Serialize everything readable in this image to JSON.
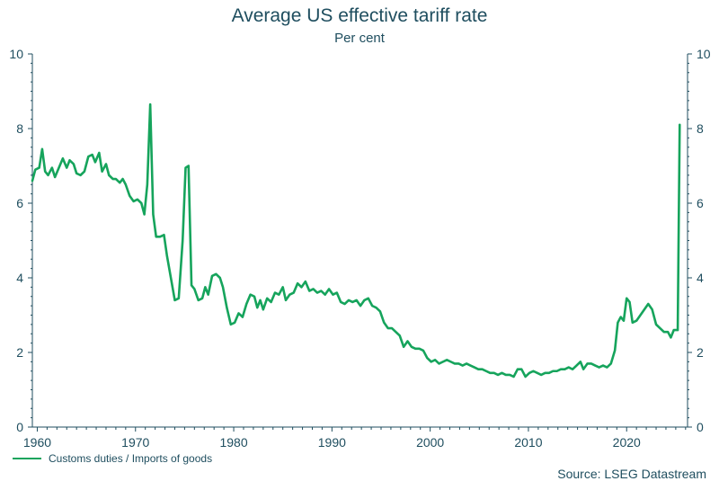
{
  "chart_data": {
    "type": "line",
    "title": "Average US effective tariff rate",
    "subtitle": "Per cent",
    "xlabel": "",
    "ylabel": "",
    "xlim": [
      1959.5,
      2026.2
    ],
    "ylim": [
      0,
      10
    ],
    "x_ticks": [
      {
        "value": 1960,
        "label": "1960"
      },
      {
        "value": 1970,
        "label": "1970"
      },
      {
        "value": 1980,
        "label": "1980"
      },
      {
        "value": 1990,
        "label": "1990"
      },
      {
        "value": 2000,
        "label": "2000"
      },
      {
        "value": 2010,
        "label": "2010"
      },
      {
        "value": 2020,
        "label": "2020"
      }
    ],
    "y_ticks": [
      {
        "value": 0,
        "label": "0"
      },
      {
        "value": 2,
        "label": "2"
      },
      {
        "value": 4,
        "label": "4"
      },
      {
        "value": 6,
        "label": "6"
      },
      {
        "value": 8,
        "label": "8"
      },
      {
        "value": 10,
        "label": "10"
      }
    ],
    "series": [
      {
        "name": "Customs duties / Imports of goods",
        "color": "#16a45c",
        "points": [
          [
            1959.5,
            6.6
          ],
          [
            1959.8,
            6.9
          ],
          [
            1960.2,
            6.95
          ],
          [
            1960.5,
            7.45
          ],
          [
            1960.8,
            6.85
          ],
          [
            1961.1,
            6.75
          ],
          [
            1961.5,
            6.95
          ],
          [
            1961.8,
            6.7
          ],
          [
            1962.2,
            6.95
          ],
          [
            1962.6,
            7.2
          ],
          [
            1963.0,
            6.95
          ],
          [
            1963.3,
            7.15
          ],
          [
            1963.7,
            7.05
          ],
          [
            1964.0,
            6.8
          ],
          [
            1964.4,
            6.75
          ],
          [
            1964.8,
            6.85
          ],
          [
            1965.2,
            7.25
          ],
          [
            1965.6,
            7.3
          ],
          [
            1965.9,
            7.1
          ],
          [
            1966.3,
            7.35
          ],
          [
            1966.6,
            6.85
          ],
          [
            1967.0,
            7.05
          ],
          [
            1967.3,
            6.75
          ],
          [
            1967.7,
            6.65
          ],
          [
            1968.0,
            6.65
          ],
          [
            1968.4,
            6.55
          ],
          [
            1968.7,
            6.65
          ],
          [
            1969.0,
            6.5
          ],
          [
            1969.4,
            6.2
          ],
          [
            1969.8,
            6.05
          ],
          [
            1970.2,
            6.1
          ],
          [
            1970.6,
            6.0
          ],
          [
            1970.9,
            5.7
          ],
          [
            1971.2,
            6.5
          ],
          [
            1971.5,
            8.65
          ],
          [
            1971.8,
            5.7
          ],
          [
            1972.1,
            5.1
          ],
          [
            1972.5,
            5.1
          ],
          [
            1972.9,
            5.15
          ],
          [
            1973.2,
            4.6
          ],
          [
            1973.6,
            4.0
          ],
          [
            1974.0,
            3.4
          ],
          [
            1974.4,
            3.45
          ],
          [
            1974.8,
            5.0
          ],
          [
            1975.1,
            6.95
          ],
          [
            1975.4,
            7.0
          ],
          [
            1975.7,
            3.8
          ],
          [
            1976.0,
            3.7
          ],
          [
            1976.4,
            3.4
          ],
          [
            1976.8,
            3.45
          ],
          [
            1977.1,
            3.75
          ],
          [
            1977.4,
            3.55
          ],
          [
            1977.8,
            4.05
          ],
          [
            1978.2,
            4.1
          ],
          [
            1978.6,
            4.0
          ],
          [
            1978.9,
            3.75
          ],
          [
            1979.3,
            3.2
          ],
          [
            1979.7,
            2.75
          ],
          [
            1980.1,
            2.8
          ],
          [
            1980.5,
            3.05
          ],
          [
            1980.9,
            2.95
          ],
          [
            1981.3,
            3.3
          ],
          [
            1981.7,
            3.55
          ],
          [
            1982.1,
            3.5
          ],
          [
            1982.4,
            3.2
          ],
          [
            1982.7,
            3.4
          ],
          [
            1983.0,
            3.15
          ],
          [
            1983.4,
            3.45
          ],
          [
            1983.8,
            3.35
          ],
          [
            1984.2,
            3.6
          ],
          [
            1984.6,
            3.55
          ],
          [
            1985.0,
            3.75
          ],
          [
            1985.3,
            3.4
          ],
          [
            1985.7,
            3.55
          ],
          [
            1986.1,
            3.6
          ],
          [
            1986.5,
            3.85
          ],
          [
            1986.9,
            3.75
          ],
          [
            1987.3,
            3.9
          ],
          [
            1987.7,
            3.65
          ],
          [
            1988.1,
            3.7
          ],
          [
            1988.5,
            3.6
          ],
          [
            1988.9,
            3.65
          ],
          [
            1989.3,
            3.55
          ],
          [
            1989.7,
            3.7
          ],
          [
            1990.1,
            3.55
          ],
          [
            1990.5,
            3.6
          ],
          [
            1990.9,
            3.35
          ],
          [
            1991.3,
            3.3
          ],
          [
            1991.7,
            3.4
          ],
          [
            1992.1,
            3.35
          ],
          [
            1992.5,
            3.4
          ],
          [
            1992.9,
            3.25
          ],
          [
            1993.3,
            3.4
          ],
          [
            1993.7,
            3.45
          ],
          [
            1994.1,
            3.25
          ],
          [
            1994.5,
            3.2
          ],
          [
            1994.9,
            3.1
          ],
          [
            1995.3,
            2.8
          ],
          [
            1995.7,
            2.65
          ],
          [
            1996.1,
            2.65
          ],
          [
            1996.5,
            2.55
          ],
          [
            1996.9,
            2.45
          ],
          [
            1997.3,
            2.15
          ],
          [
            1997.7,
            2.3
          ],
          [
            1998.1,
            2.15
          ],
          [
            1998.5,
            2.1
          ],
          [
            1998.9,
            2.1
          ],
          [
            1999.3,
            2.05
          ],
          [
            1999.7,
            1.85
          ],
          [
            2000.1,
            1.75
          ],
          [
            2000.5,
            1.8
          ],
          [
            2000.9,
            1.7
          ],
          [
            2001.3,
            1.75
          ],
          [
            2001.7,
            1.8
          ],
          [
            2002.1,
            1.75
          ],
          [
            2002.5,
            1.7
          ],
          [
            2002.9,
            1.7
          ],
          [
            2003.3,
            1.65
          ],
          [
            2003.7,
            1.7
          ],
          [
            2004.1,
            1.65
          ],
          [
            2004.5,
            1.6
          ],
          [
            2004.9,
            1.55
          ],
          [
            2005.3,
            1.55
          ],
          [
            2005.7,
            1.5
          ],
          [
            2006.1,
            1.45
          ],
          [
            2006.5,
            1.45
          ],
          [
            2006.9,
            1.4
          ],
          [
            2007.3,
            1.45
          ],
          [
            2007.7,
            1.4
          ],
          [
            2008.1,
            1.4
          ],
          [
            2008.5,
            1.35
          ],
          [
            2008.9,
            1.55
          ],
          [
            2009.3,
            1.55
          ],
          [
            2009.7,
            1.35
          ],
          [
            2010.1,
            1.45
          ],
          [
            2010.5,
            1.5
          ],
          [
            2010.9,
            1.45
          ],
          [
            2011.3,
            1.4
          ],
          [
            2011.7,
            1.45
          ],
          [
            2012.1,
            1.45
          ],
          [
            2012.5,
            1.5
          ],
          [
            2012.9,
            1.5
          ],
          [
            2013.3,
            1.55
          ],
          [
            2013.7,
            1.55
          ],
          [
            2014.1,
            1.6
          ],
          [
            2014.5,
            1.55
          ],
          [
            2014.9,
            1.65
          ],
          [
            2015.3,
            1.75
          ],
          [
            2015.6,
            1.55
          ],
          [
            2016.0,
            1.7
          ],
          [
            2016.4,
            1.7
          ],
          [
            2016.8,
            1.65
          ],
          [
            2017.2,
            1.6
          ],
          [
            2017.6,
            1.65
          ],
          [
            2018.0,
            1.6
          ],
          [
            2018.4,
            1.7
          ],
          [
            2018.8,
            2.05
          ],
          [
            2019.1,
            2.8
          ],
          [
            2019.4,
            2.95
          ],
          [
            2019.7,
            2.85
          ],
          [
            2020.0,
            3.45
          ],
          [
            2020.3,
            3.35
          ],
          [
            2020.6,
            2.8
          ],
          [
            2021.0,
            2.85
          ],
          [
            2021.4,
            3.0
          ],
          [
            2021.8,
            3.15
          ],
          [
            2022.2,
            3.3
          ],
          [
            2022.6,
            3.15
          ],
          [
            2023.0,
            2.75
          ],
          [
            2023.4,
            2.65
          ],
          [
            2023.8,
            2.55
          ],
          [
            2024.2,
            2.55
          ],
          [
            2024.5,
            2.4
          ],
          [
            2024.8,
            2.6
          ],
          [
            2025.2,
            2.6
          ],
          [
            2025.4,
            8.1
          ]
        ]
      }
    ],
    "legend": {
      "label": "Customs duties / Imports of goods",
      "position": "bottom-left"
    },
    "source": "Source: LSEG Datastream"
  }
}
